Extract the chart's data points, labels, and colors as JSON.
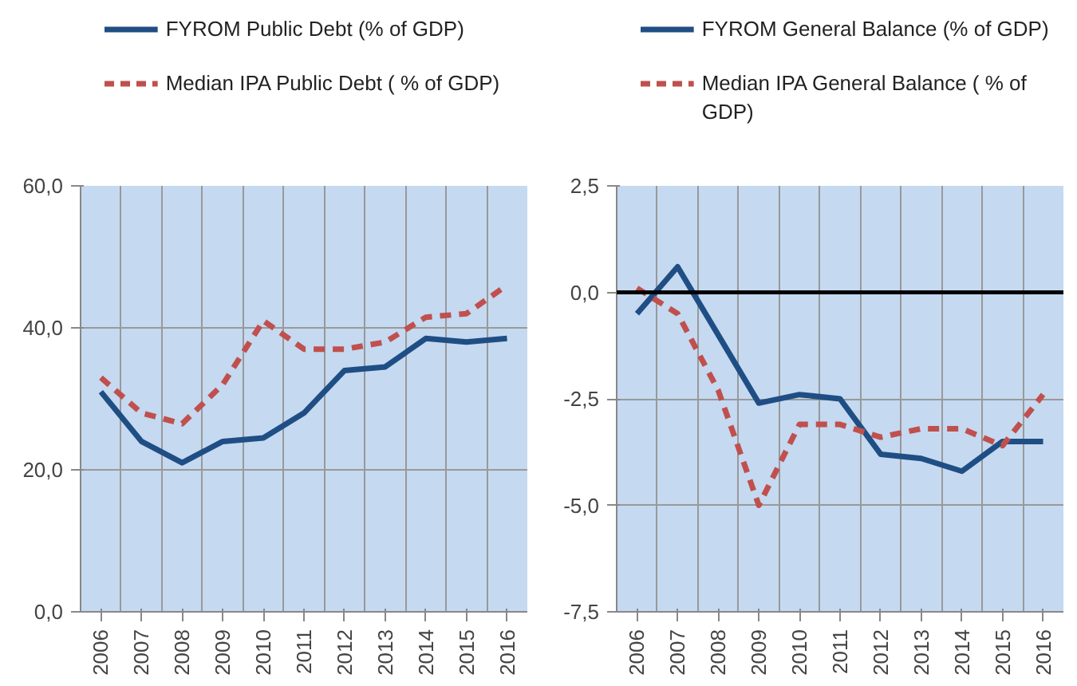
{
  "chart_data": [
    {
      "type": "line",
      "categories": [
        "2006",
        "2007",
        "2008",
        "2009",
        "2010",
        "2011",
        "2012",
        "2013",
        "2014",
        "2015",
        "2016"
      ],
      "series": [
        {
          "name": "FYROM Public Debt (% of GDP)",
          "color": "#1f4e84",
          "line_style": "solid",
          "values": [
            31,
            24,
            21,
            24,
            24.5,
            28,
            34,
            34.5,
            38.5,
            38,
            38.5
          ]
        },
        {
          "name": "Median IPA Public  Debt ( % of GDP)",
          "color": "#c0504d",
          "line_style": "dashed",
          "values": [
            33,
            28,
            26.5,
            32,
            41,
            37,
            37,
            38,
            41.5,
            42,
            46
          ]
        }
      ],
      "ylim": [
        0,
        60
      ],
      "yticks": [
        {
          "value": 0,
          "label": "0,0"
        },
        {
          "value": 20,
          "label": "20,0"
        },
        {
          "value": 40,
          "label": "40,0"
        },
        {
          "value": 60,
          "label": "60,0"
        }
      ],
      "grid": true,
      "legend": "top"
    },
    {
      "type": "line",
      "categories": [
        "2006",
        "2007",
        "2008",
        "2009",
        "2010",
        "2011",
        "2012",
        "2013",
        "2014",
        "2015",
        "2016"
      ],
      "series": [
        {
          "name": "FYROM General Balance (% of GDP)",
          "color": "#1f4e84",
          "line_style": "solid",
          "values": [
            -0.5,
            0.6,
            -1,
            -2.6,
            -2.4,
            -2.5,
            -3.8,
            -3.9,
            -4.2,
            -3.5,
            -3.5
          ]
        },
        {
          "name": "Median IPA General Balance ( % of GDP)",
          "color": "#c0504d",
          "line_style": "dashed",
          "values": [
            0.1,
            -0.5,
            -2.3,
            -5.0,
            -3.1,
            -3.1,
            -3.4,
            -3.2,
            -3.2,
            -3.6,
            -2.4
          ]
        }
      ],
      "ylim": [
        -7.5,
        2.5
      ],
      "yticks": [
        {
          "value": -7.5,
          "label": "-7,5"
        },
        {
          "value": -5,
          "label": "-5,0"
        },
        {
          "value": -2.5,
          "label": "-2,5"
        },
        {
          "value": 0,
          "label": "0,0"
        },
        {
          "value": 2.5,
          "label": "2,5"
        }
      ],
      "ref_lines": [
        {
          "axis": "y",
          "value": 0,
          "color": "#000000"
        }
      ],
      "grid": true,
      "legend": "top"
    }
  ]
}
